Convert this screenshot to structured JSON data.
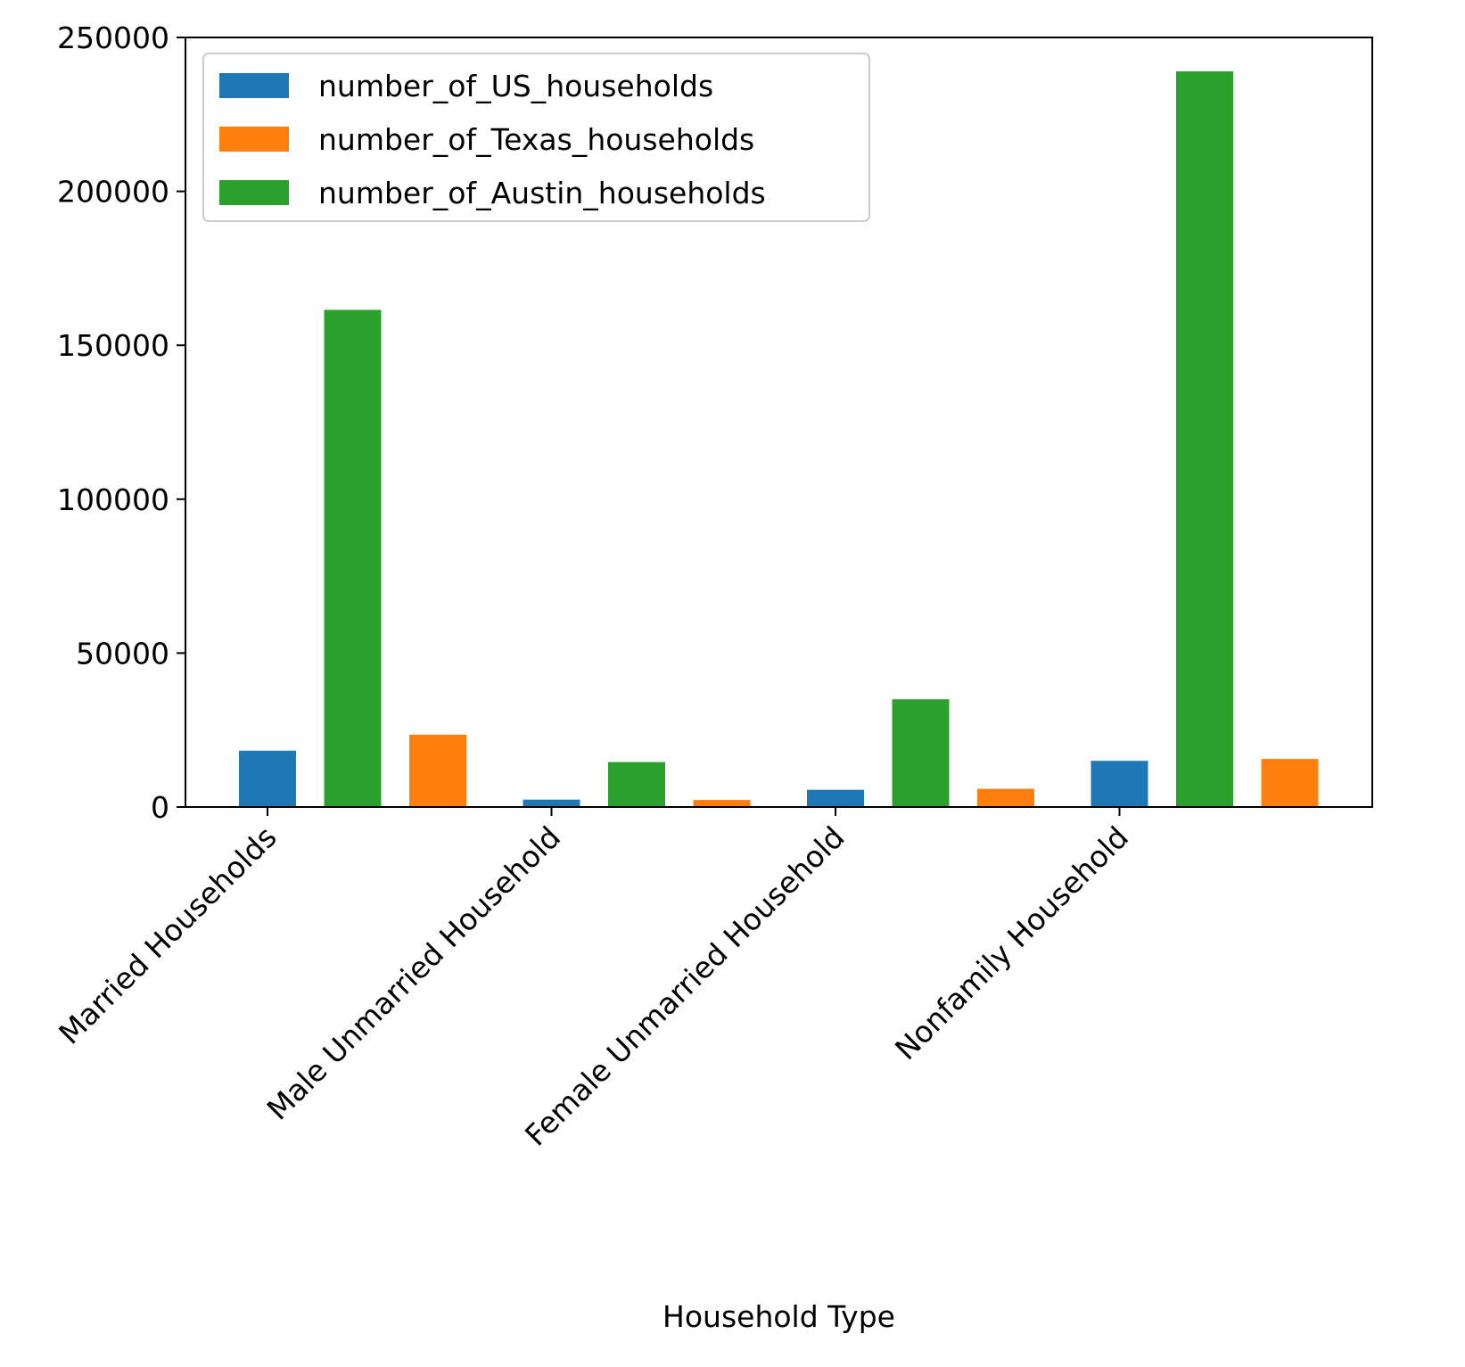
{
  "chart_data": {
    "type": "bar",
    "title": "",
    "xlabel": "Household Type",
    "ylabel": "",
    "categories": [
      "Married Households",
      "Male Unmarried Household",
      "Female Unmarried Household",
      "Nonfamily Household"
    ],
    "series": [
      {
        "name": "number_of_US_households",
        "color": "#1f77b4",
        "values": [
          18300,
          2400,
          5600,
          15000
        ]
      },
      {
        "name": "number_of_Texas_households",
        "color": "#ff7f0e",
        "values": [
          23500,
          2300,
          5900,
          15600
        ]
      },
      {
        "name": "number_of_Austin_households",
        "color": "#2ca02c",
        "values": [
          161500,
          14600,
          35000,
          239000
        ]
      }
    ],
    "bar_order": [
      "number_of_US_households",
      "number_of_Austin_households",
      "number_of_Texas_households"
    ],
    "ylim": [
      0,
      250000
    ],
    "yticks": [
      0,
      50000,
      100000,
      150000,
      200000,
      250000
    ],
    "ytick_labels": [
      "0",
      "50000",
      "100000",
      "150000",
      "200000",
      "250000"
    ],
    "grid": false,
    "legend_position": "top-left"
  }
}
